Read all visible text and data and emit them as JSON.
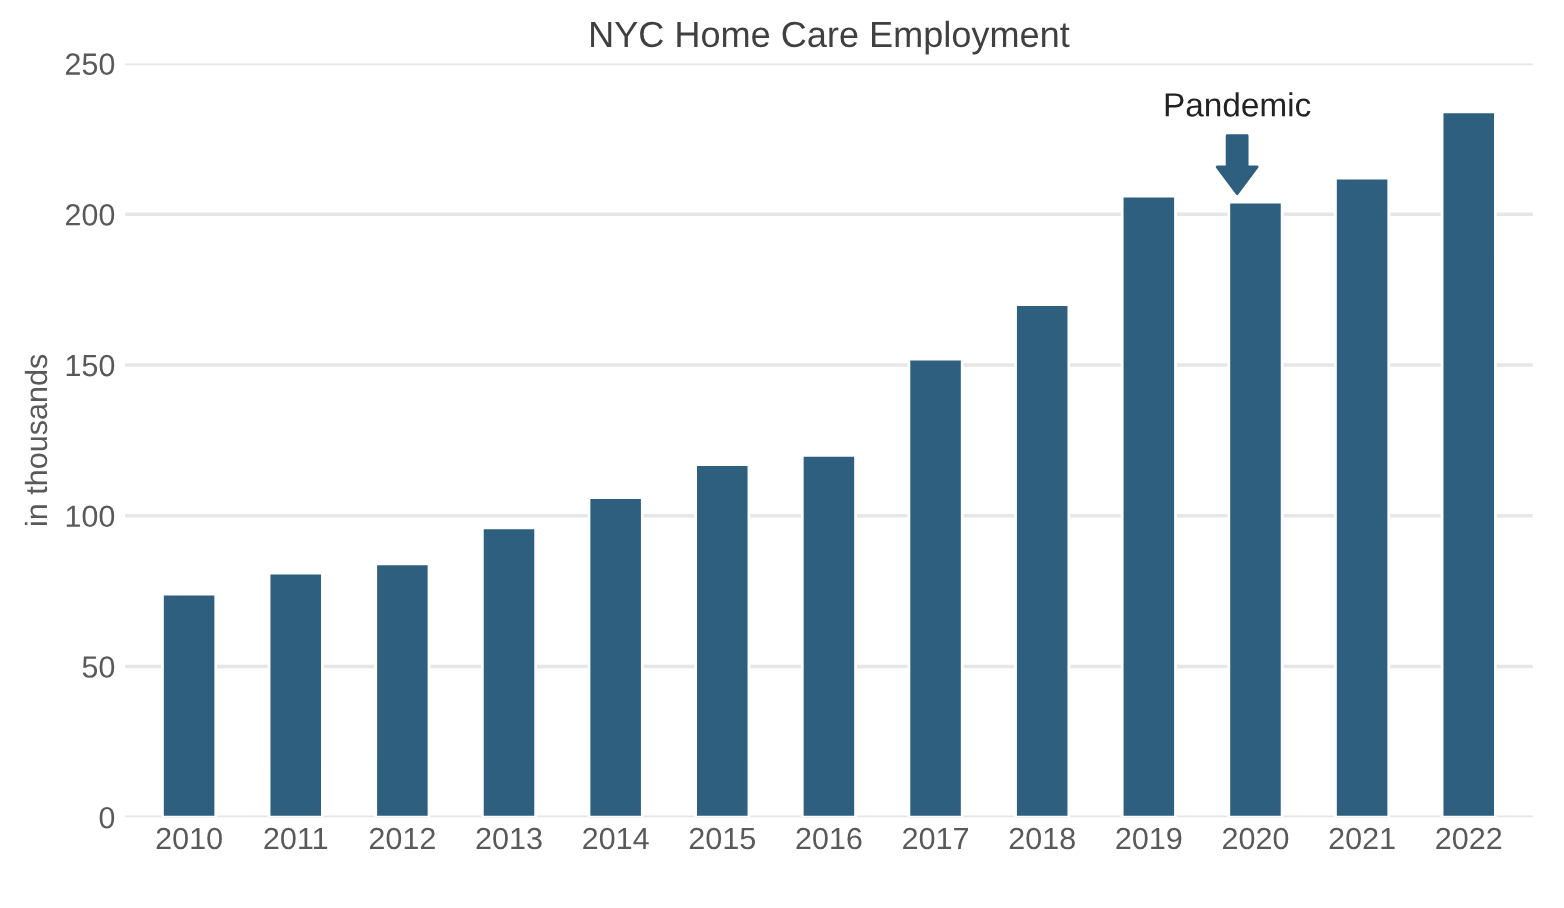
{
  "chart_data": {
    "type": "bar",
    "title": "NYC Home Care Employment",
    "ylabel": "in thousands",
    "categories": [
      "2010",
      "2011",
      "2012",
      "2013",
      "2014",
      "2015",
      "2016",
      "2017",
      "2018",
      "2019",
      "2020",
      "2021",
      "2022"
    ],
    "values": [
      74,
      81,
      84,
      96,
      106,
      117,
      120,
      152,
      170,
      206,
      204,
      212,
      234
    ],
    "color": "#2e5f7f",
    "ylim": [
      0,
      250
    ],
    "yticks": [
      0,
      50,
      100,
      150,
      200,
      250
    ],
    "grid": "y",
    "annotations": [
      "Pandemic"
    ]
  }
}
